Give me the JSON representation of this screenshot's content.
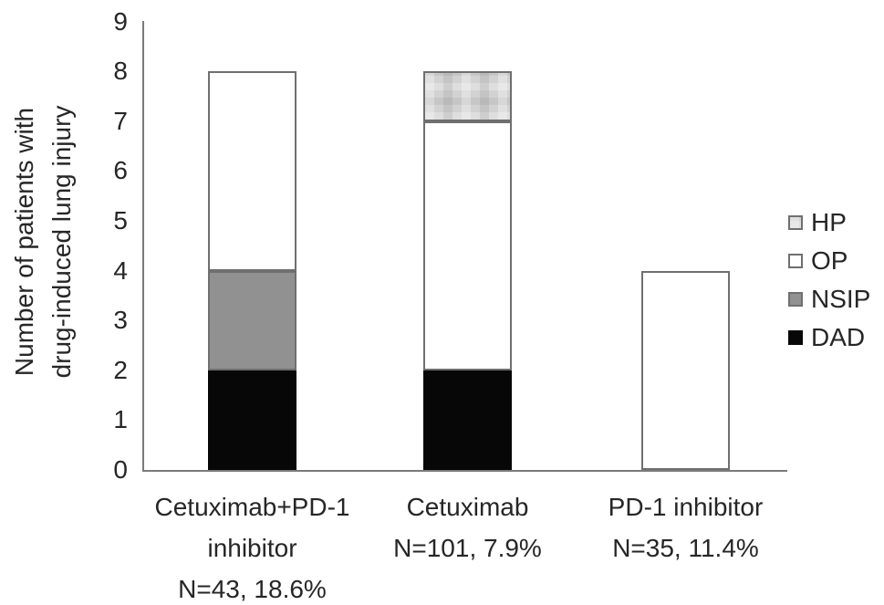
{
  "chart_data": {
    "type": "bar",
    "stacked": true,
    "title": "",
    "ylabel_lines": [
      "Number of patients with",
      "drug-induced lung injury"
    ],
    "xlabel": "",
    "ylim": [
      0,
      9
    ],
    "yticks": [
      0,
      1,
      2,
      3,
      4,
      5,
      6,
      7,
      8,
      9
    ],
    "grid": false,
    "categories": [
      {
        "label_lines": [
          "Cetuximab+PD-1",
          "inhibitor",
          "N=43, 18.6%"
        ]
      },
      {
        "label_lines": [
          "Cetuximab",
          "N=101, 7.9%"
        ]
      },
      {
        "label_lines": [
          "PD-1 inhibitor",
          "N=35, 11.4%"
        ]
      }
    ],
    "series": [
      {
        "name": "DAD",
        "color": "#070707",
        "pattern": "none",
        "values": [
          2,
          2,
          0
        ]
      },
      {
        "name": "NSIP",
        "color": "#919191",
        "pattern": "none",
        "values": [
          2,
          0,
          0
        ]
      },
      {
        "name": "OP",
        "color": "#ffffff",
        "pattern": "none",
        "values": [
          4,
          5,
          4
        ]
      },
      {
        "name": "HP",
        "color": "#d2d2d2",
        "pattern": "plaid",
        "values": [
          0,
          1,
          0
        ]
      }
    ],
    "totals": [
      8,
      8,
      4
    ],
    "legend": {
      "position": "right",
      "order": [
        "HP",
        "OP",
        "NSIP",
        "DAD"
      ]
    }
  },
  "colors": {
    "background": "#ffffff",
    "axis": "#7a7a7a",
    "bar_border": "#6f6f6f",
    "text": "#262626"
  }
}
